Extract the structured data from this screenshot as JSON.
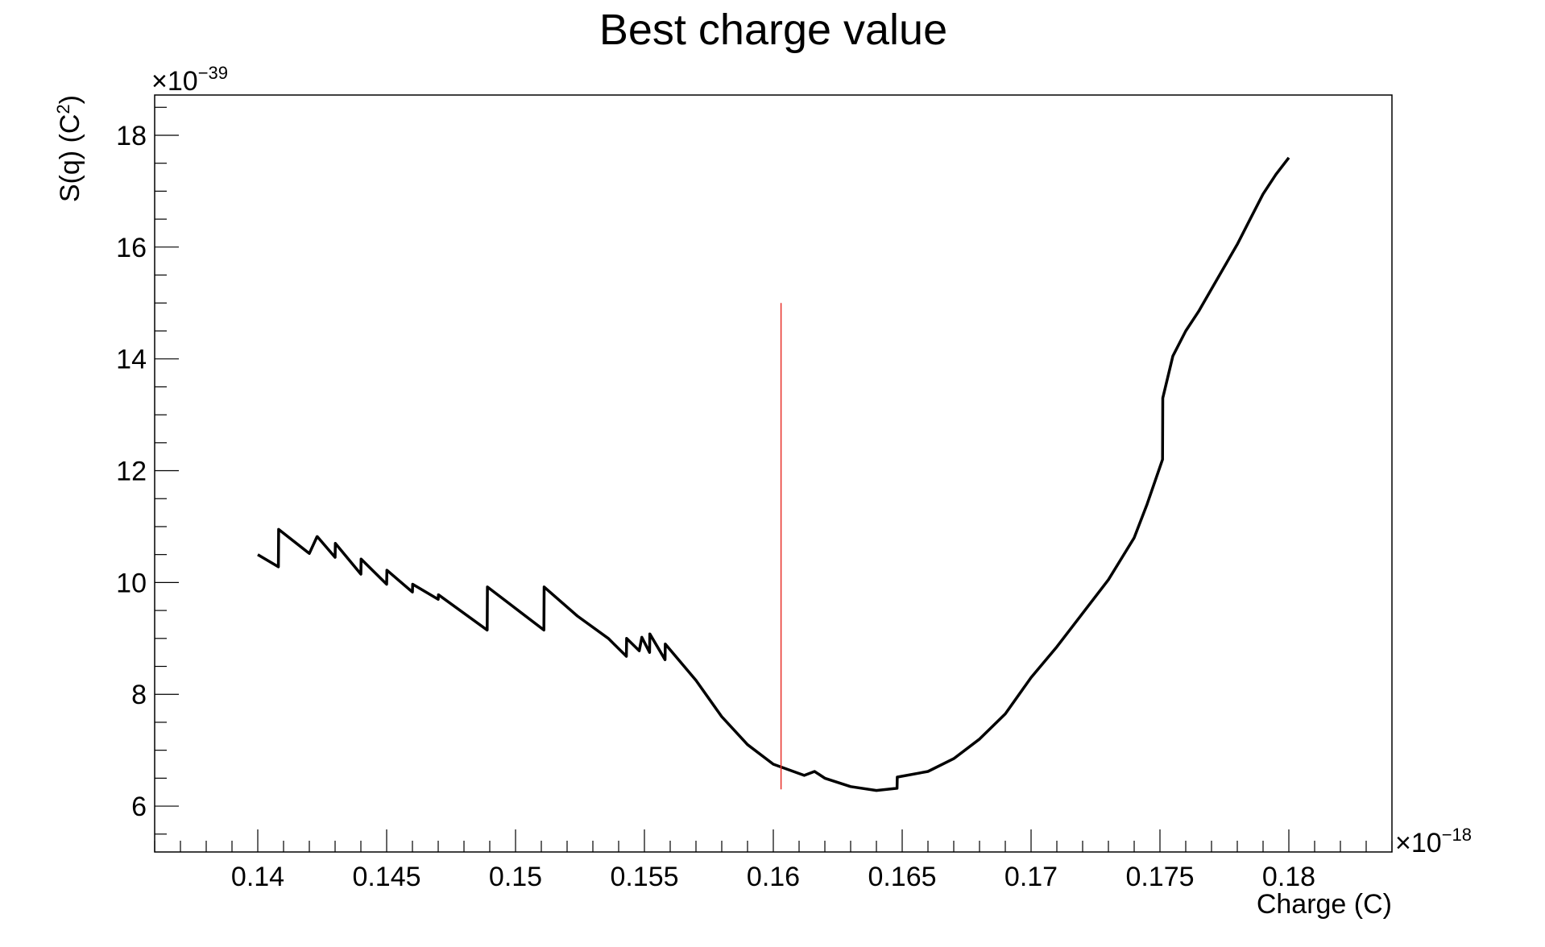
{
  "chart_data": {
    "type": "line",
    "title": "Best charge value",
    "xlabel": "Charge (C)",
    "ylabel": "S(q) (C",
    "ylabel_sup": "2",
    "ylabel_close": ")",
    "x_exponent_prefix": "×10",
    "x_exponent": "−18",
    "y_exponent_prefix": "×10",
    "y_exponent": "−39",
    "xlim": [
      0.136,
      0.184
    ],
    "ylim": [
      5.18,
      18.72
    ],
    "x_ticks": [
      0.14,
      0.145,
      0.15,
      0.155,
      0.16,
      0.165,
      0.17,
      0.175,
      0.18
    ],
    "x_tick_labels": [
      "0.14",
      "0.145",
      "0.15",
      "0.155",
      "0.16",
      "0.165",
      "0.17",
      "0.175",
      "0.18"
    ],
    "y_ticks": [
      6,
      8,
      10,
      12,
      14,
      16,
      18
    ],
    "y_tick_labels": [
      "6",
      "8",
      "10",
      "12",
      "14",
      "16",
      "18"
    ],
    "grid": false,
    "legend": "none",
    "colors": {
      "series": "#000000",
      "marker": "#e8302a",
      "frame": "#000000"
    },
    "series": [
      {
        "x": [
          0.14,
          0.1408,
          0.14081,
          0.142,
          0.1423,
          0.14231,
          0.143,
          0.14301,
          0.144,
          0.14401,
          0.145,
          0.14501,
          0.146,
          0.14601,
          0.147,
          0.14701,
          0.1489,
          0.14891,
          0.1511,
          0.15111,
          0.1524,
          0.1536,
          0.1543,
          0.15431,
          0.1548,
          0.1549,
          0.1552,
          0.15521,
          0.1558,
          0.15581,
          0.157,
          0.158,
          0.159,
          0.16,
          0.1612,
          0.1616,
          0.162,
          0.163,
          0.164,
          0.1648,
          0.16481,
          0.166,
          0.167,
          0.168,
          0.169,
          0.17,
          0.171,
          0.172,
          0.173,
          0.174,
          0.1745,
          0.1751,
          0.17511,
          0.1755,
          0.176,
          0.1765,
          0.177,
          0.1775,
          0.178,
          0.1785,
          0.179,
          0.1795,
          0.18
        ],
        "y": [
          10.5,
          10.28,
          10.95,
          10.52,
          10.82,
          10.82,
          10.45,
          10.7,
          10.15,
          10.42,
          9.97,
          10.22,
          9.83,
          9.97,
          9.7,
          9.78,
          9.15,
          9.92,
          9.15,
          9.92,
          9.4,
          9.0,
          8.68,
          9.0,
          8.78,
          9.02,
          8.75,
          9.08,
          8.62,
          8.9,
          8.25,
          7.6,
          7.1,
          6.75,
          6.55,
          6.62,
          6.5,
          6.35,
          6.28,
          6.32,
          6.52,
          6.62,
          6.85,
          7.2,
          7.65,
          8.3,
          8.85,
          9.45,
          10.05,
          10.8,
          11.4,
          12.2,
          13.3,
          14.05,
          14.5,
          14.85,
          15.25,
          15.65,
          16.05,
          16.5,
          16.95,
          17.3,
          17.6
        ]
      }
    ],
    "marker_line": {
      "x": 0.1603,
      "y0": 6.3,
      "y1": 15.0
    }
  }
}
